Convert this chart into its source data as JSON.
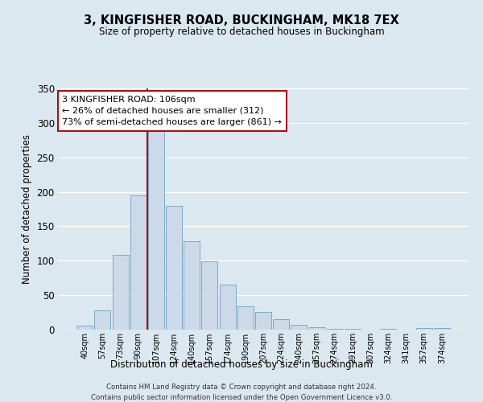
{
  "title": "3, KINGFISHER ROAD, BUCKINGHAM, MK18 7EX",
  "subtitle": "Size of property relative to detached houses in Buckingham",
  "xlabel": "Distribution of detached houses by size in Buckingham",
  "ylabel": "Number of detached properties",
  "bar_labels": [
    "40sqm",
    "57sqm",
    "73sqm",
    "90sqm",
    "107sqm",
    "124sqm",
    "140sqm",
    "157sqm",
    "174sqm",
    "190sqm",
    "207sqm",
    "224sqm",
    "240sqm",
    "257sqm",
    "274sqm",
    "291sqm",
    "307sqm",
    "324sqm",
    "341sqm",
    "357sqm",
    "374sqm"
  ],
  "bar_values": [
    6,
    28,
    109,
    195,
    289,
    180,
    128,
    99,
    65,
    34,
    26,
    15,
    7,
    3,
    1,
    1,
    0,
    1,
    0,
    2,
    2
  ],
  "bar_color": "#ccd9e8",
  "bar_edge_color": "#7aaac8",
  "marker_label": "3 KINGFISHER ROAD: 106sqm",
  "annotation_line1": "← 26% of detached houses are smaller (312)",
  "annotation_line2": "73% of semi-detached houses are larger (861) →",
  "vline_color": "#aa1111",
  "annotation_box_edge": "#aa1111",
  "ylim": [
    0,
    350
  ],
  "yticks": [
    0,
    50,
    100,
    150,
    200,
    250,
    300,
    350
  ],
  "background_color": "#dce8f0",
  "plot_background": "#dce8f0",
  "grid_color": "#ffffff",
  "footer1": "Contains HM Land Registry data © Crown copyright and database right 2024.",
  "footer2": "Contains public sector information licensed under the Open Government Licence v3.0."
}
